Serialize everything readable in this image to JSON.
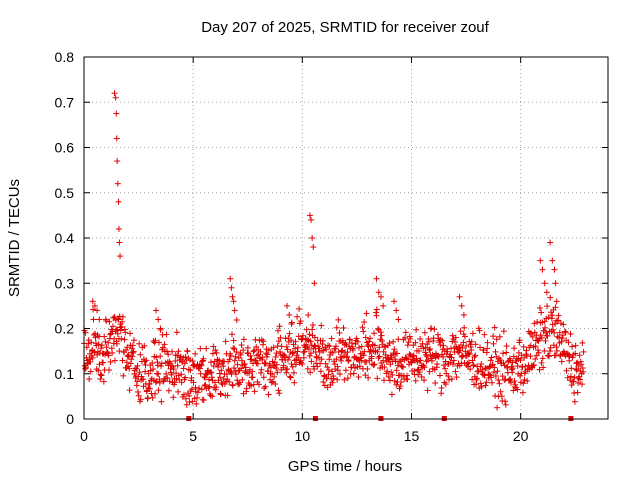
{
  "chart_data": {
    "type": "scatter",
    "title": "Day 207 of 2025, SRMTID for receiver zouf",
    "xlabel": "GPS time / hours",
    "ylabel": "SRMTID / TECUs",
    "xlim": [
      0,
      24
    ],
    "ylim": [
      0,
      0.8
    ],
    "xticks": [
      0,
      5,
      10,
      15,
      20
    ],
    "yticks": [
      0,
      0.1,
      0.2,
      0.3,
      0.4,
      0.5,
      0.6,
      0.7,
      0.8
    ],
    "grid": true,
    "marker": "plus",
    "color": "#e00000",
    "baseline_markers_x": [
      4.8,
      10.6,
      13.6,
      16.5,
      22.3
    ],
    "spikes": [
      {
        "x": [
          1.4,
          1.45,
          1.48,
          1.5,
          1.52,
          1.55,
          1.58,
          1.6,
          1.62,
          1.65
        ],
        "y": [
          0.72,
          0.71,
          0.675,
          0.62,
          0.57,
          0.52,
          0.48,
          0.42,
          0.39,
          0.36
        ]
      },
      {
        "x": [
          10.35,
          10.4,
          10.45,
          10.5,
          10.55
        ],
        "y": [
          0.45,
          0.44,
          0.4,
          0.38,
          0.3
        ]
      },
      {
        "x": [
          21.35,
          21.45,
          21.55,
          21.6,
          21.65
        ],
        "y": [
          0.39,
          0.35,
          0.33,
          0.3,
          0.26
        ]
      },
      {
        "x": [
          20.9,
          21.0,
          21.1,
          21.2
        ],
        "y": [
          0.35,
          0.33,
          0.3,
          0.28
        ]
      },
      {
        "x": [
          6.7,
          6.75,
          6.8,
          6.85,
          6.9
        ],
        "y": [
          0.31,
          0.29,
          0.27,
          0.26,
          0.24
        ]
      },
      {
        "x": [
          13.4,
          13.5,
          13.6,
          13.7
        ],
        "y": [
          0.31,
          0.28,
          0.27,
          0.25
        ]
      },
      {
        "x": [
          3.3,
          3.4,
          3.5
        ],
        "y": [
          0.24,
          0.22,
          0.2
        ]
      },
      {
        "x": [
          0.4,
          0.5,
          0.6,
          0.7
        ],
        "y": [
          0.26,
          0.25,
          0.24,
          0.22
        ]
      },
      {
        "x": [
          17.2,
          17.3,
          17.4
        ],
        "y": [
          0.27,
          0.25,
          0.23
        ]
      },
      {
        "x": [
          14.2,
          14.3,
          14.4
        ],
        "y": [
          0.26,
          0.24,
          0.22
        ]
      },
      {
        "x": [
          9.3,
          9.4,
          9.5
        ],
        "y": [
          0.25,
          0.23,
          0.21
        ]
      }
    ],
    "trend": {
      "x": [
        0,
        0.5,
        1.0,
        1.5,
        2.0,
        2.5,
        3.0,
        3.5,
        4.0,
        4.5,
        5.0,
        5.5,
        6.0,
        6.5,
        7.0,
        7.5,
        8.0,
        8.5,
        9.0,
        9.5,
        10.0,
        10.5,
        11.0,
        11.5,
        12.0,
        12.5,
        13.0,
        13.5,
        14.0,
        14.5,
        15.0,
        15.5,
        16.0,
        16.5,
        17.0,
        17.5,
        18.0,
        18.5,
        19.0,
        19.5,
        20.0,
        20.5,
        21.0,
        21.5,
        22.0,
        22.5,
        22.9
      ],
      "y": [
        0.13,
        0.16,
        0.14,
        0.18,
        0.15,
        0.11,
        0.1,
        0.12,
        0.11,
        0.1,
        0.09,
        0.09,
        0.1,
        0.11,
        0.13,
        0.12,
        0.13,
        0.12,
        0.13,
        0.15,
        0.16,
        0.17,
        0.13,
        0.14,
        0.15,
        0.14,
        0.15,
        0.16,
        0.13,
        0.12,
        0.13,
        0.14,
        0.14,
        0.13,
        0.15,
        0.14,
        0.13,
        0.12,
        0.11,
        0.1,
        0.12,
        0.14,
        0.18,
        0.2,
        0.15,
        0.11,
        0.1
      ]
    },
    "spread": 0.055,
    "points_per_hour": 55
  }
}
